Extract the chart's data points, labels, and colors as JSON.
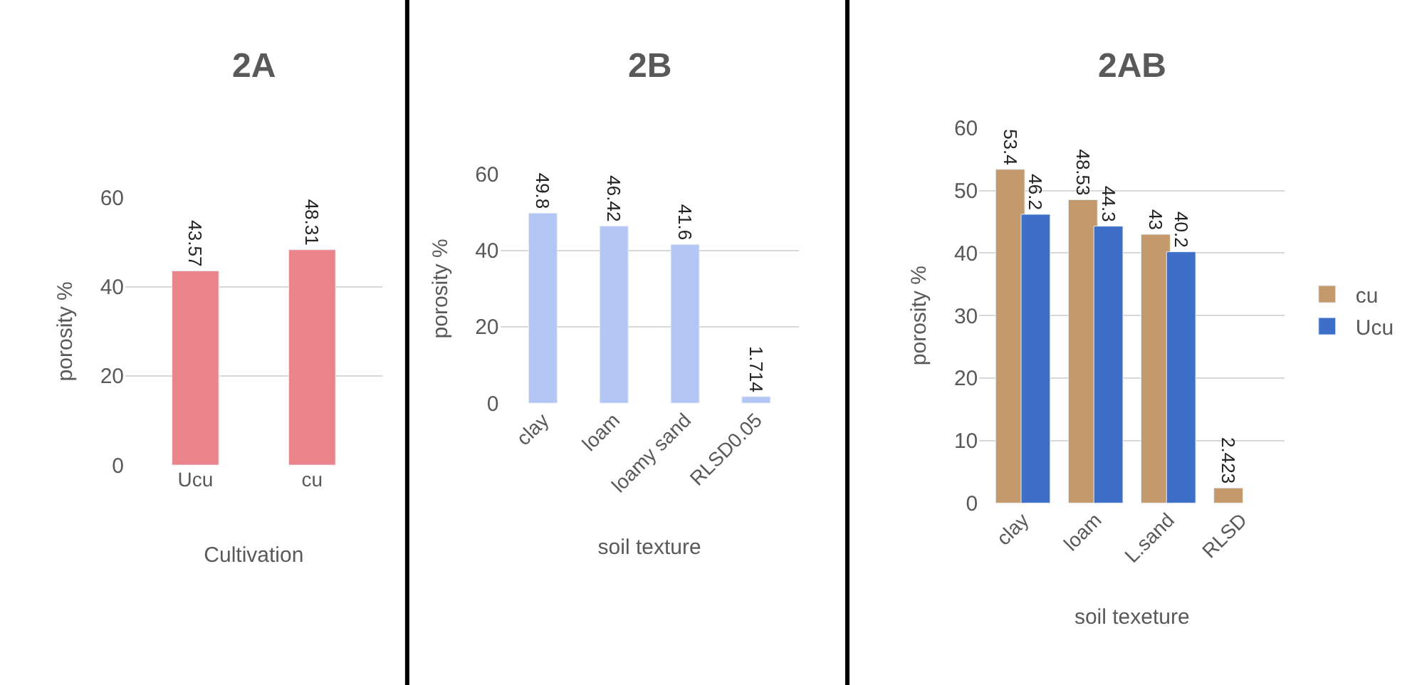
{
  "chart_data": [
    {
      "type": "bar",
      "title": "2A",
      "xlabel": "Cultivation",
      "ylabel": "porosity %",
      "categories": [
        "Ucu",
        "cu"
      ],
      "values": [
        43.57,
        48.31
      ],
      "color": "#e8848a",
      "ylim": [
        0,
        60
      ],
      "yticks": [
        0,
        20,
        40,
        60
      ],
      "grid": "y",
      "data_labels": true,
      "legend": false
    },
    {
      "type": "bar",
      "title": "2B",
      "xlabel": "soil texture",
      "ylabel": "porosity %",
      "categories": [
        "clay",
        "loam",
        "loamy sand",
        "RLSD0.05"
      ],
      "values": [
        49.8,
        46.42,
        41.6,
        1.714
      ],
      "color": "#b4c6f4",
      "ylim": [
        0,
        60
      ],
      "yticks": [
        0,
        20,
        40,
        60
      ],
      "grid": "y",
      "data_labels": true,
      "legend": false
    },
    {
      "type": "bar",
      "title": "2AB",
      "xlabel": "soil texeture",
      "ylabel": "porosity %",
      "categories": [
        "clay",
        "loam",
        "L.sand",
        "RLSD"
      ],
      "series": [
        {
          "name": "cu",
          "color": "#c49a6c",
          "values": [
            53.4,
            48.53,
            43,
            2.423
          ]
        },
        {
          "name": "Ucu",
          "color": "#3d6fc9",
          "values": [
            46.2,
            44.3,
            40.2,
            null
          ]
        }
      ],
      "ylim": [
        0,
        60
      ],
      "yticks": [
        0,
        10,
        20,
        30,
        40,
        50,
        60
      ],
      "grid": "y",
      "data_labels": true,
      "legend": "right"
    }
  ]
}
